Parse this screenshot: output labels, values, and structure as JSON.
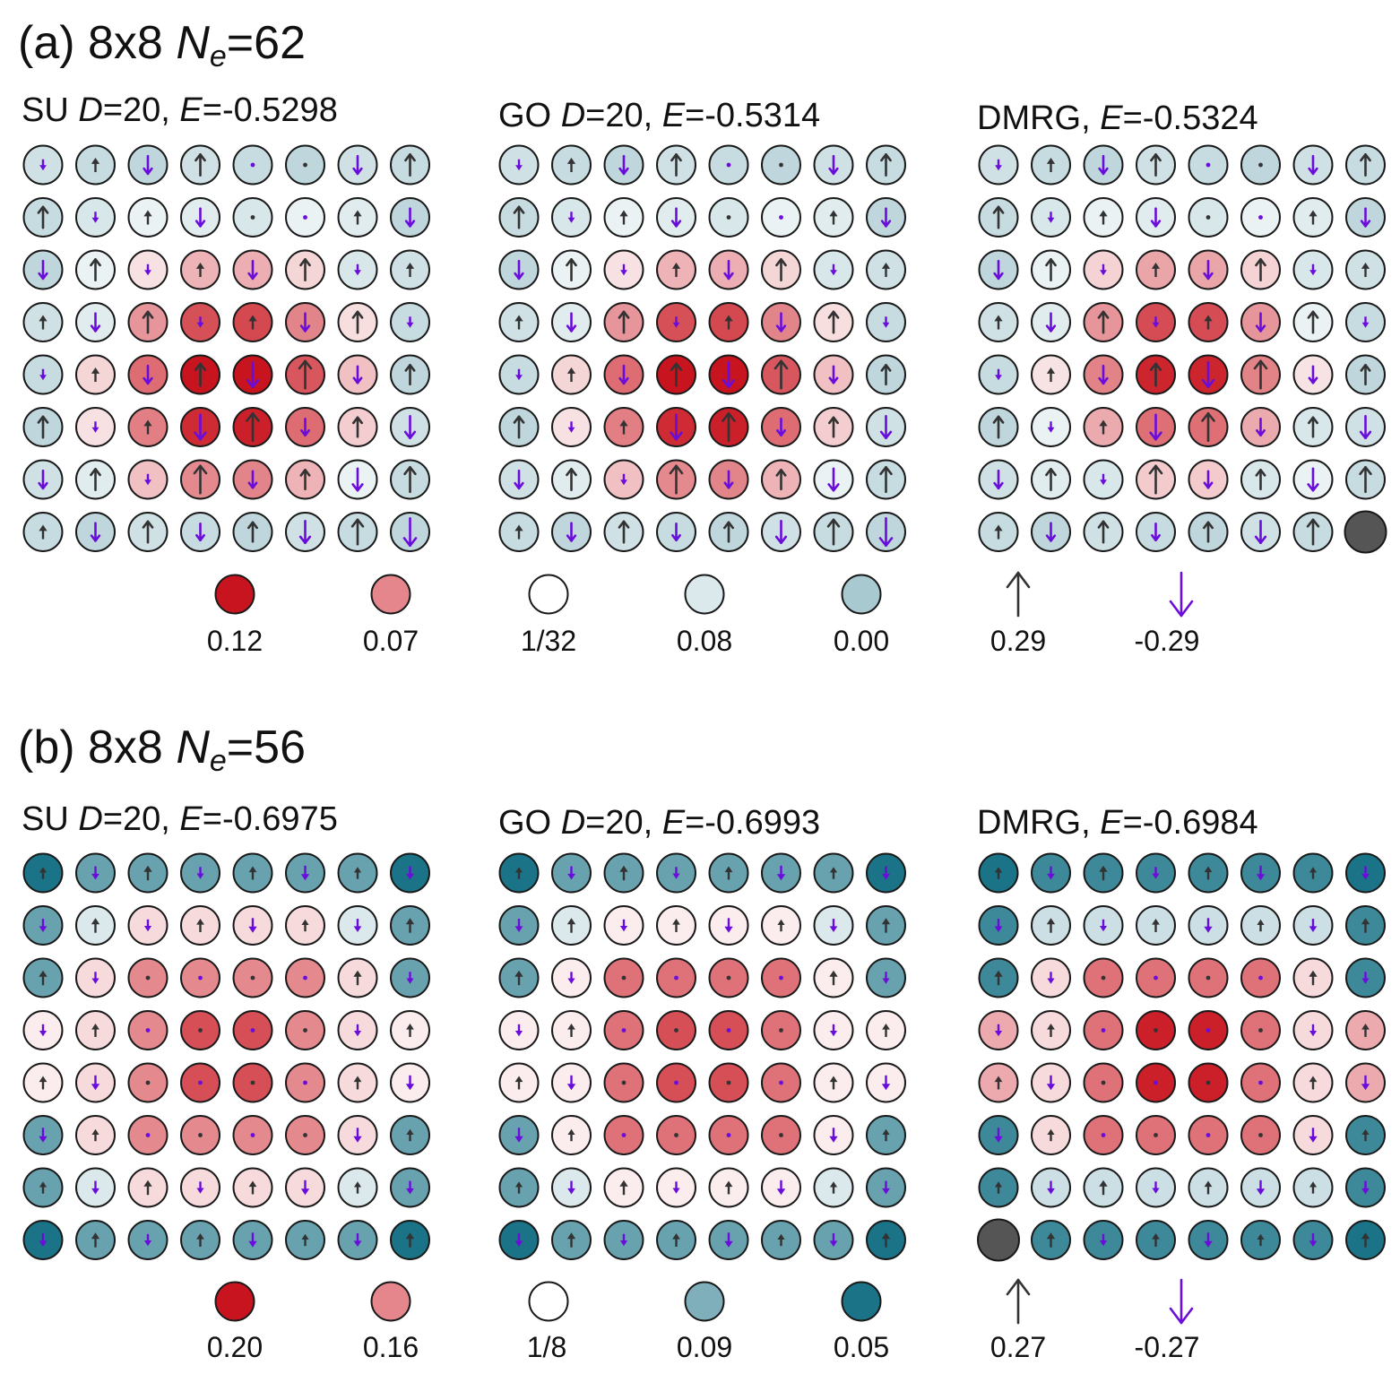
{
  "panels": [
    {
      "label": "(a)",
      "size_text": "8x8",
      "ne_symbol": "N",
      "ne_sub": "e",
      "ne_value": "=62",
      "grids": [
        {
          "method": "SU",
          "d_symbol": "D",
          "d_value": "=20, ",
          "e_symbol": "E",
          "e_value": "=-0.5298"
        },
        {
          "method": "GO",
          "d_symbol": "D",
          "d_value": "=20, ",
          "e_symbol": "E",
          "e_value": "=-0.5314"
        },
        {
          "method": "DMRG, ",
          "d_symbol": "",
          "d_value": "",
          "e_symbol": "E",
          "e_value": "=-0.5324"
        }
      ],
      "legend": {
        "density": [
          {
            "label": "0.12",
            "color": "#c8141e"
          },
          {
            "label": "0.07",
            "color": "#e4868b"
          },
          {
            "label": "1/32",
            "color": "#ffffff"
          },
          {
            "label": "0.08",
            "color": "#dbe9ec"
          },
          {
            "label": "0.00",
            "color": "#a9c9d0"
          }
        ],
        "spin": [
          {
            "label": "0.29",
            "direction": "up",
            "color": "#333333"
          },
          {
            "label": "-0.29",
            "direction": "down",
            "color": "#6a0ddb"
          }
        ]
      }
    },
    {
      "label": "(b)",
      "size_text": "8x8",
      "ne_symbol": "N",
      "ne_sub": "e",
      "ne_value": "=56",
      "grids": [
        {
          "method": "SU",
          "d_symbol": "D",
          "d_value": "=20, ",
          "e_symbol": "E",
          "e_value": "=-0.6975"
        },
        {
          "method": "GO",
          "d_symbol": "D",
          "d_value": "=20, ",
          "e_symbol": "E",
          "e_value": "=-0.6993"
        },
        {
          "method": "DMRG, ",
          "d_symbol": "",
          "d_value": "",
          "e_symbol": "E",
          "e_value": "=-0.6984"
        }
      ],
      "legend": {
        "density": [
          {
            "label": "0.20",
            "color": "#c8141e"
          },
          {
            "label": "0.16",
            "color": "#e4868b"
          },
          {
            "label": "1/8",
            "color": "#ffffff"
          },
          {
            "label": "0.09",
            "color": "#7eafbb"
          },
          {
            "label": "0.05",
            "color": "#1a7386"
          }
        ],
        "spin": [
          {
            "label": "0.27",
            "direction": "up",
            "color": "#333333"
          },
          {
            "label": "-0.27",
            "direction": "down",
            "color": "#6a0ddb"
          }
        ]
      }
    }
  ],
  "colors": {
    "arrow_up": "#333333",
    "arrow_down": "#6a0ddb",
    "hole": "#555555",
    "outline": "#1a1a1a"
  }
}
